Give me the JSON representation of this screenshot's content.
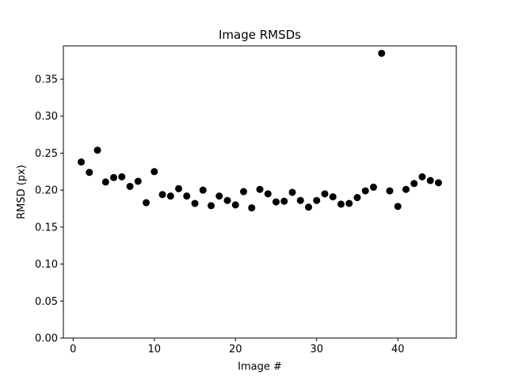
{
  "chart_data": {
    "type": "scatter",
    "title": "Image RMSDs",
    "xlabel": "Image #",
    "ylabel": "RMSD (px)",
    "xlim": [
      -1.2,
      47.2
    ],
    "ylim": [
      0.0,
      0.395
    ],
    "xticks": [
      0,
      10,
      20,
      30,
      40
    ],
    "yticks": [
      0.0,
      0.05,
      0.1,
      0.15,
      0.2,
      0.25,
      0.3,
      0.35
    ],
    "ytick_labels": [
      "0.00",
      "0.05",
      "0.10",
      "0.15",
      "0.20",
      "0.25",
      "0.30",
      "0.35"
    ],
    "grid": false,
    "marker_color": "#000000",
    "points": [
      {
        "x": 1,
        "y": 0.238
      },
      {
        "x": 2,
        "y": 0.224
      },
      {
        "x": 3,
        "y": 0.254
      },
      {
        "x": 4,
        "y": 0.211
      },
      {
        "x": 5,
        "y": 0.217
      },
      {
        "x": 6,
        "y": 0.218
      },
      {
        "x": 7,
        "y": 0.205
      },
      {
        "x": 8,
        "y": 0.212
      },
      {
        "x": 9,
        "y": 0.183
      },
      {
        "x": 10,
        "y": 0.225
      },
      {
        "x": 11,
        "y": 0.194
      },
      {
        "x": 12,
        "y": 0.192
      },
      {
        "x": 13,
        "y": 0.202
      },
      {
        "x": 14,
        "y": 0.192
      },
      {
        "x": 15,
        "y": 0.182
      },
      {
        "x": 16,
        "y": 0.2
      },
      {
        "x": 17,
        "y": 0.179
      },
      {
        "x": 18,
        "y": 0.192
      },
      {
        "x": 19,
        "y": 0.186
      },
      {
        "x": 20,
        "y": 0.18
      },
      {
        "x": 21,
        "y": 0.198
      },
      {
        "x": 22,
        "y": 0.176
      },
      {
        "x": 23,
        "y": 0.201
      },
      {
        "x": 24,
        "y": 0.195
      },
      {
        "x": 25,
        "y": 0.184
      },
      {
        "x": 26,
        "y": 0.185
      },
      {
        "x": 27,
        "y": 0.197
      },
      {
        "x": 28,
        "y": 0.186
      },
      {
        "x": 29,
        "y": 0.177
      },
      {
        "x": 30,
        "y": 0.186
      },
      {
        "x": 31,
        "y": 0.195
      },
      {
        "x": 32,
        "y": 0.191
      },
      {
        "x": 33,
        "y": 0.181
      },
      {
        "x": 34,
        "y": 0.182
      },
      {
        "x": 35,
        "y": 0.19
      },
      {
        "x": 36,
        "y": 0.199
      },
      {
        "x": 37,
        "y": 0.204
      },
      {
        "x": 38,
        "y": 0.385
      },
      {
        "x": 39,
        "y": 0.199
      },
      {
        "x": 40,
        "y": 0.178
      },
      {
        "x": 41,
        "y": 0.201
      },
      {
        "x": 42,
        "y": 0.209
      },
      {
        "x": 43,
        "y": 0.218
      },
      {
        "x": 44,
        "y": 0.213
      },
      {
        "x": 45,
        "y": 0.21
      }
    ]
  }
}
